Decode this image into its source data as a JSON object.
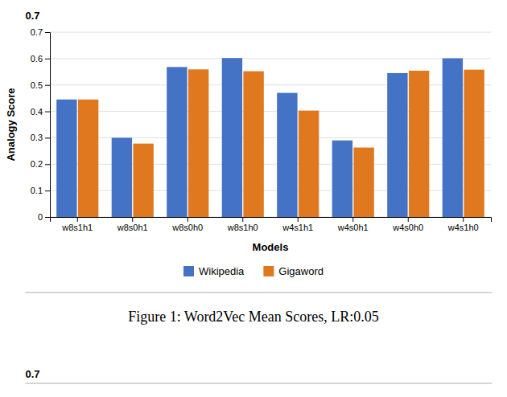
{
  "chart_data": {
    "type": "bar",
    "categories": [
      "w8s1h1",
      "w8s0h1",
      "w8s0h0",
      "w8s1h0",
      "w4s1h1",
      "w4s0h1",
      "w4s0h0",
      "w4s1h0"
    ],
    "series": [
      {
        "name": "Wikipedia",
        "color": "#4472C4",
        "values": [
          0.445,
          0.3,
          0.568,
          0.602,
          0.47,
          0.29,
          0.545,
          0.601
        ]
      },
      {
        "name": "Gigaword",
        "color": "#E07820",
        "values": [
          0.445,
          0.278,
          0.559,
          0.552,
          0.403,
          0.263,
          0.554,
          0.558
        ]
      }
    ],
    "x_label": "Models",
    "y_label": "Analogy Score",
    "ylim": [
      0,
      0.7
    ],
    "yticks": [
      0,
      0.1,
      0.2,
      0.3,
      0.4,
      0.5,
      0.6,
      0.7
    ],
    "grid": true,
    "legend": "bottom",
    "annotations": [
      "0.7",
      "Figure 1: Word2Vec Mean Scores, LR:0.05",
      "0.7"
    ]
  }
}
